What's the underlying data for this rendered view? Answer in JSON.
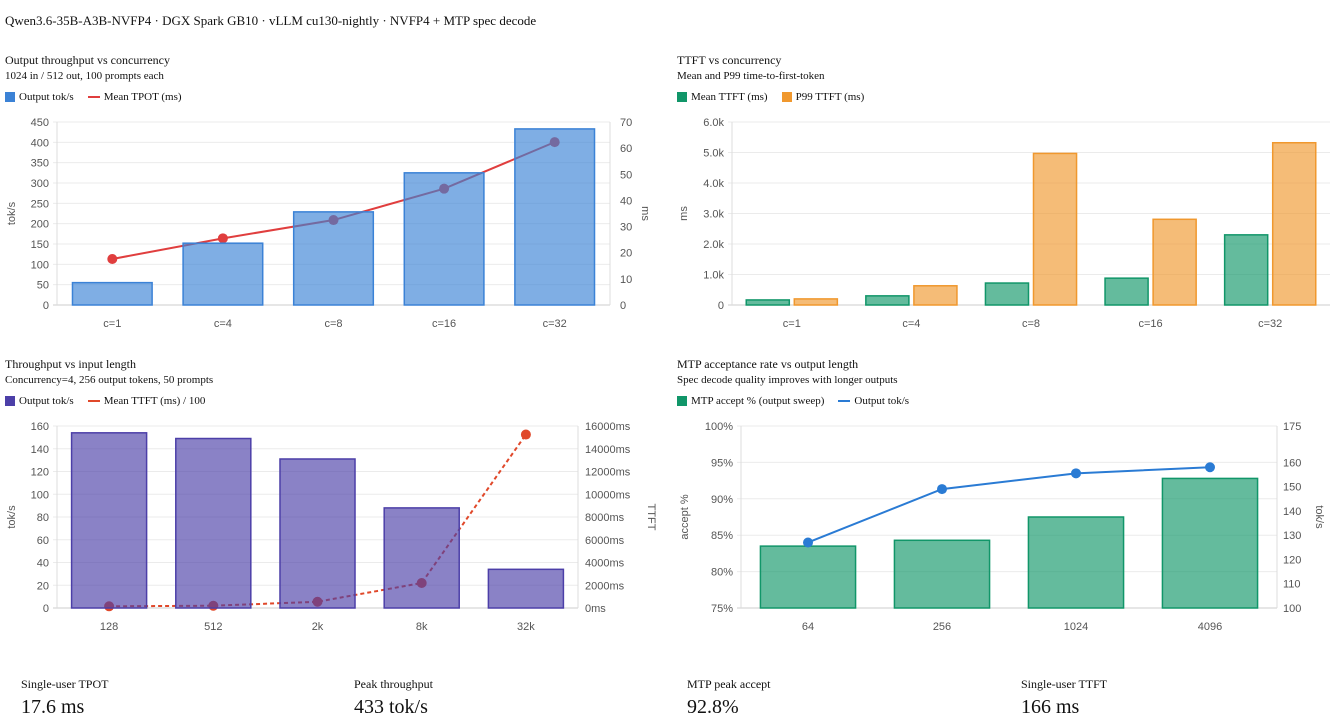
{
  "page_title": "Qwen3.6-35B-A3B-NVFP4 · DGX Spark GB10 · vLLM cu130-nightly · NVFP4 + MTP spec decode",
  "stats": [
    {
      "label": "Single-user TPOT",
      "value": "17.6 ms"
    },
    {
      "label": "Peak throughput",
      "value": "433 tok/s"
    },
    {
      "label": "MTP peak accept",
      "value": "92.8%"
    },
    {
      "label": "Single-user TTFT",
      "value": "166 ms"
    }
  ],
  "chart_data": [
    {
      "type": "bar",
      "title": "Output throughput vs concurrency",
      "subtitle": "1024 in / 512 out, 100 prompts each",
      "categories": [
        "c=1",
        "c=4",
        "c=8",
        "c=16",
        "c=32"
      ],
      "ylabel": "tok/s",
      "ylim": [
        0,
        450
      ],
      "yticks": [
        "0",
        "50",
        "100",
        "150",
        "200",
        "250",
        "300",
        "350",
        "400",
        "450"
      ],
      "y2label": "ms",
      "y2lim": [
        0,
        70
      ],
      "y2ticks": [
        "0",
        "10",
        "20",
        "30",
        "40",
        "50",
        "60",
        "70"
      ],
      "grid": true,
      "legend": "top-left",
      "series": [
        {
          "name": "Output tok/s",
          "kind": "bar",
          "axis": "left",
          "color": "#3b82d6",
          "values": [
            55,
            152,
            229,
            325,
            433
          ]
        },
        {
          "name": "Mean TPOT (ms)",
          "kind": "line",
          "axis": "right",
          "color": "#e03e3e",
          "dashed": false,
          "values": [
            17.6,
            25.5,
            32.5,
            44.5,
            62.3
          ]
        }
      ]
    },
    {
      "type": "bar",
      "title": "TTFT vs concurrency",
      "subtitle": "Mean and P99 time-to-first-token",
      "categories": [
        "c=1",
        "c=4",
        "c=8",
        "c=16",
        "c=32"
      ],
      "ylabel": "ms",
      "ylim": [
        0,
        6000
      ],
      "yticks": [
        "0",
        "1.0k",
        "2.0k",
        "3.0k",
        "4.0k",
        "5.0k",
        "6.0k"
      ],
      "grid": true,
      "legend": "top-left",
      "series": [
        {
          "name": "Mean TTFT (ms)",
          "kind": "bar",
          "axis": "left",
          "color": "#119669",
          "values": [
            166,
            300,
            720,
            880,
            2300
          ]
        },
        {
          "name": "P99 TTFT (ms)",
          "kind": "bar",
          "axis": "left",
          "color": "#f0982e",
          "values": [
            200,
            630,
            4970,
            2810,
            5320
          ]
        }
      ]
    },
    {
      "type": "bar",
      "title": "Throughput vs input length",
      "subtitle": "Concurrency=4, 256 output tokens, 50 prompts",
      "categories": [
        "128",
        "512",
        "2k",
        "8k",
        "32k"
      ],
      "ylabel": "tok/s",
      "ylim": [
        0,
        160
      ],
      "yticks": [
        "0",
        "20",
        "40",
        "60",
        "80",
        "100",
        "120",
        "140",
        "160"
      ],
      "y2label": "TTFT",
      "y2lim": [
        0,
        16000
      ],
      "y2ticks": [
        "0ms",
        "2000ms",
        "4000ms",
        "6000ms",
        "8000ms",
        "10000ms",
        "12000ms",
        "14000ms",
        "16000ms"
      ],
      "grid": true,
      "legend": "top-left",
      "series": [
        {
          "name": "Output tok/s",
          "kind": "bar",
          "axis": "left",
          "color": "#4c3fa8",
          "values": [
            154,
            149,
            131,
            88,
            34
          ]
        },
        {
          "name": "Mean TTFT (ms) / 100",
          "kind": "line",
          "axis": "right",
          "color": "#e0482a",
          "dashed": true,
          "values": [
            150,
            200,
            550,
            2200,
            15250
          ]
        }
      ]
    },
    {
      "type": "bar",
      "title": "MTP acceptance rate vs output length",
      "subtitle": "Spec decode quality improves with longer outputs",
      "categories": [
        "64",
        "256",
        "1024",
        "4096"
      ],
      "ylabel": "accept %",
      "ylim": [
        75,
        100
      ],
      "yticks": [
        "75%",
        "80%",
        "85%",
        "90%",
        "95%",
        "100%"
      ],
      "y2label": "tok/s",
      "y2lim": [
        100,
        175
      ],
      "y2ticks": [
        "100",
        "110",
        "120",
        "130",
        "140",
        "150",
        "160",
        "175"
      ],
      "y2tick_values": [
        100,
        110,
        120,
        130,
        140,
        150,
        160,
        175
      ],
      "grid": true,
      "legend": "top-left",
      "series": [
        {
          "name": "MTP accept % (output sweep)",
          "kind": "bar",
          "axis": "left",
          "color": "#119669",
          "values": [
            83.5,
            84.3,
            87.5,
            92.8
          ]
        },
        {
          "name": "Output tok/s",
          "kind": "line",
          "axis": "right",
          "color": "#2a7bd4",
          "dashed": false,
          "values": [
            127,
            149,
            155.5,
            158
          ]
        }
      ]
    }
  ]
}
